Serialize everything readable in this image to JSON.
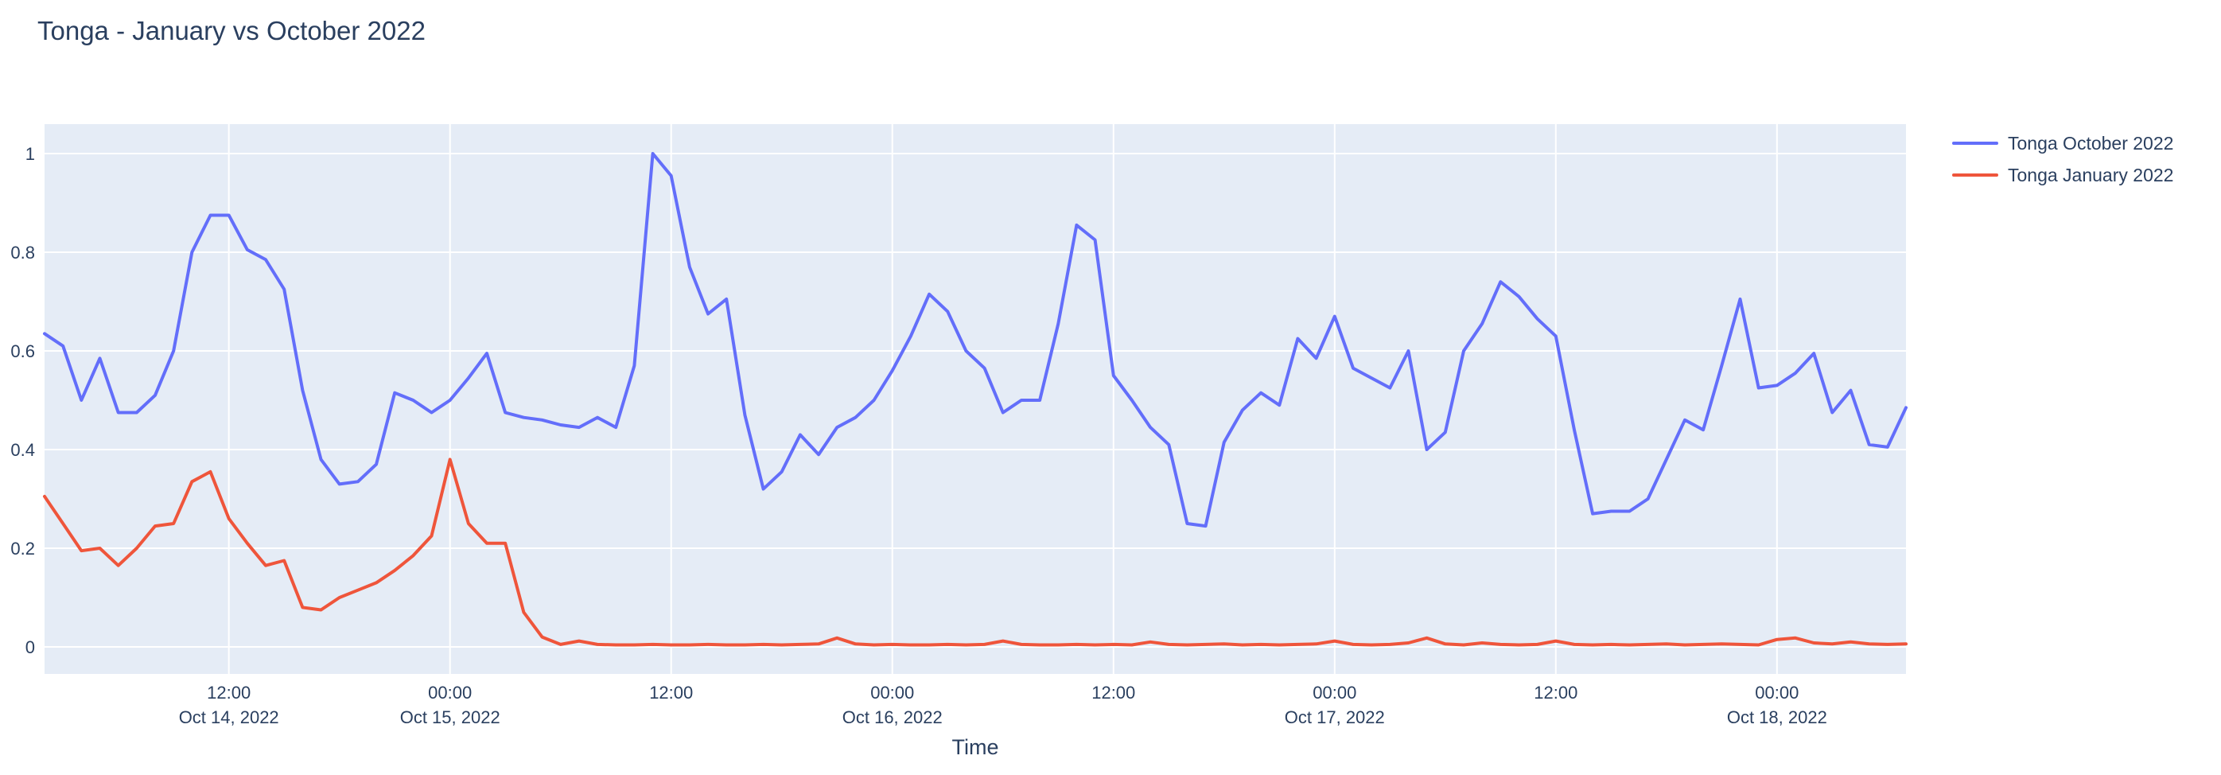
{
  "page": {
    "title": "Tonga - January vs October 2022"
  },
  "x_axis": {
    "title": "Time"
  },
  "chart_data": {
    "type": "line",
    "title": "Tonga - January vs October 2022",
    "xlabel": "Time",
    "ylabel": "",
    "x_start": "2022-10-14 02:00",
    "x_interval_hours": 1,
    "n_points": 102,
    "grid": true,
    "legend_position": "top-right-outside",
    "ylim": [
      -0.055,
      1.06
    ],
    "style": {
      "plot_background": "#E5ECF6",
      "grid_color": "#FFFFFF",
      "text_color": "#2a3f5f",
      "page_background": "#FFFFFF"
    },
    "y_ticks": [
      {
        "value": 0,
        "label": "0"
      },
      {
        "value": 0.2,
        "label": "0.2"
      },
      {
        "value": 0.4,
        "label": "0.4"
      },
      {
        "value": 0.6,
        "label": "0.6"
      },
      {
        "value": 0.8,
        "label": "0.8"
      },
      {
        "value": 1,
        "label": "1"
      }
    ],
    "x_ticks": [
      {
        "index": 10,
        "time": "12:00",
        "date": "Oct 14, 2022"
      },
      {
        "index": 22,
        "time": "00:00",
        "date": "Oct 15, 2022"
      },
      {
        "index": 34,
        "time": "12:00",
        "date": ""
      },
      {
        "index": 46,
        "time": "00:00",
        "date": "Oct 16, 2022"
      },
      {
        "index": 58,
        "time": "12:00",
        "date": ""
      },
      {
        "index": 70,
        "time": "00:00",
        "date": "Oct 17, 2022"
      },
      {
        "index": 82,
        "time": "12:00",
        "date": ""
      },
      {
        "index": 94,
        "time": "00:00",
        "date": "Oct 18, 2022"
      }
    ],
    "series": [
      {
        "name": "Tonga October 2022",
        "color": "#636EFA",
        "values": [
          0.635,
          0.61,
          0.5,
          0.585,
          0.475,
          0.475,
          0.51,
          0.6,
          0.8,
          0.875,
          0.875,
          0.805,
          0.785,
          0.725,
          0.52,
          0.38,
          0.33,
          0.335,
          0.37,
          0.515,
          0.5,
          0.475,
          0.5,
          0.545,
          0.595,
          0.475,
          0.465,
          0.46,
          0.45,
          0.445,
          0.465,
          0.445,
          0.57,
          1.0,
          0.955,
          0.77,
          0.675,
          0.705,
          0.47,
          0.32,
          0.355,
          0.43,
          0.39,
          0.445,
          0.465,
          0.5,
          0.56,
          0.63,
          0.715,
          0.68,
          0.6,
          0.565,
          0.475,
          0.5,
          0.5,
          0.655,
          0.855,
          0.825,
          0.55,
          0.5,
          0.445,
          0.41,
          0.25,
          0.245,
          0.415,
          0.48,
          0.515,
          0.49,
          0.625,
          0.585,
          0.67,
          0.565,
          0.545,
          0.525,
          0.6,
          0.4,
          0.435,
          0.6,
          0.655,
          0.74,
          0.71,
          0.665,
          0.63,
          0.44,
          0.27,
          0.275,
          0.275,
          0.3,
          0.38,
          0.46,
          0.44,
          0.57,
          0.705,
          0.525,
          0.53,
          0.555,
          0.595,
          0.475,
          0.52,
          0.41,
          0.405,
          0.485
        ]
      },
      {
        "name": "Tonga January 2022",
        "color": "#EF553B",
        "values": [
          0.305,
          0.25,
          0.195,
          0.2,
          0.165,
          0.2,
          0.245,
          0.25,
          0.335,
          0.355,
          0.26,
          0.21,
          0.165,
          0.175,
          0.08,
          0.075,
          0.1,
          0.115,
          0.13,
          0.155,
          0.185,
          0.225,
          0.38,
          0.25,
          0.21,
          0.21,
          0.07,
          0.02,
          0.005,
          0.012,
          0.005,
          0.004,
          0.004,
          0.005,
          0.004,
          0.004,
          0.005,
          0.004,
          0.004,
          0.005,
          0.004,
          0.005,
          0.006,
          0.018,
          0.006,
          0.004,
          0.005,
          0.004,
          0.004,
          0.005,
          0.004,
          0.005,
          0.012,
          0.005,
          0.004,
          0.004,
          0.005,
          0.004,
          0.005,
          0.004,
          0.01,
          0.005,
          0.004,
          0.005,
          0.006,
          0.004,
          0.005,
          0.004,
          0.005,
          0.006,
          0.012,
          0.005,
          0.004,
          0.005,
          0.008,
          0.018,
          0.006,
          0.004,
          0.008,
          0.005,
          0.004,
          0.005,
          0.012,
          0.005,
          0.004,
          0.005,
          0.004,
          0.005,
          0.006,
          0.004,
          0.005,
          0.006,
          0.005,
          0.004,
          0.015,
          0.018,
          0.008,
          0.006,
          0.01,
          0.006,
          0.005,
          0.006
        ]
      }
    ]
  }
}
